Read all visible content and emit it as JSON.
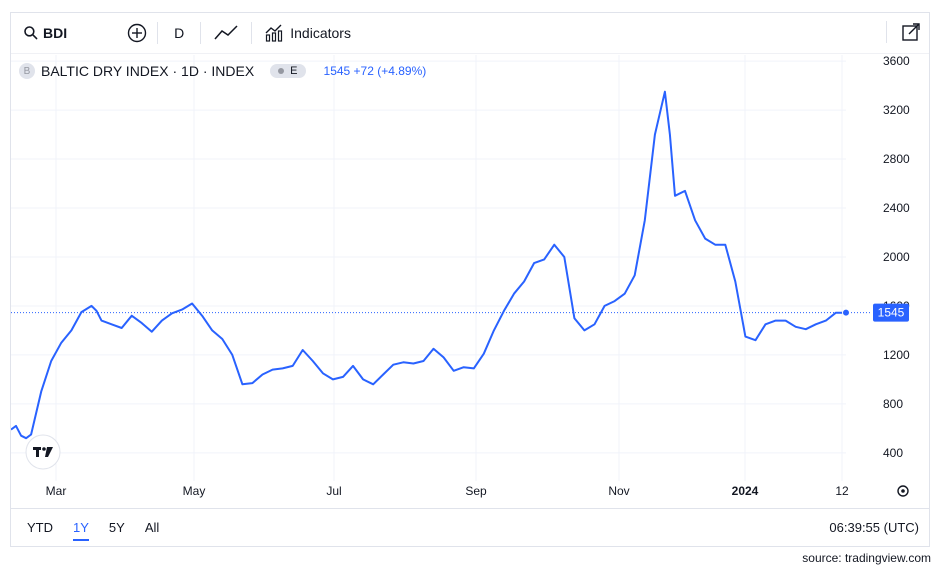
{
  "toolbar": {
    "symbol": "BDI",
    "interval": "D",
    "indicators_label": "Indicators"
  },
  "legend": {
    "title": "BALTIC DRY INDEX · 1D · INDEX",
    "badge": "E",
    "last_value": "1545 +72 (+4.89%)"
  },
  "bottom_bar": {
    "ranges": [
      "YTD",
      "1Y",
      "5Y",
      "All"
    ],
    "active_range": "1Y",
    "clock": "06:39:55 (UTC)"
  },
  "source": "source: tradingview.com",
  "colors": {
    "line": "#2962ff",
    "price_label_bg": "#2962ff",
    "grid": "#f0f3fa"
  },
  "chart_data": {
    "type": "line",
    "title": "BALTIC DRY INDEX · 1D · INDEX",
    "x_tick_labels": [
      "Mar",
      "May",
      "Jul",
      "Sep",
      "Nov",
      "2024",
      "12"
    ],
    "y_tick_labels": [
      "400",
      "800",
      "1200",
      "1600",
      "2000",
      "2400",
      "2800",
      "3200",
      "3600"
    ],
    "ylim": [
      170,
      3650
    ],
    "last_price": 1545,
    "last_price_label": "1545",
    "grid": true,
    "series": [
      {
        "x": [
          0,
          5,
          10,
          15,
          20,
          30,
          40,
          50,
          60,
          70,
          80,
          85,
          90,
          100,
          110,
          120,
          130,
          140,
          150,
          160,
          170,
          180,
          190,
          200,
          210,
          220,
          230,
          240,
          250,
          260,
          270,
          280,
          290,
          300,
          310,
          320,
          330,
          340,
          350,
          360,
          370,
          380,
          390,
          400,
          410,
          420,
          430,
          440,
          450,
          460,
          470,
          480,
          490,
          500,
          510,
          520,
          530,
          540,
          550,
          560,
          570,
          580,
          590,
          600,
          610,
          620,
          630,
          640,
          650,
          655,
          660,
          670,
          680,
          690,
          700,
          710,
          720,
          730,
          740,
          750,
          760,
          770,
          780,
          790,
          800,
          810,
          820,
          830
        ],
        "y": [
          590,
          620,
          540,
          520,
          550,
          900,
          1150,
          1300,
          1400,
          1550,
          1600,
          1560,
          1480,
          1450,
          1420,
          1520,
          1460,
          1390,
          1480,
          1540,
          1570,
          1620,
          1520,
          1400,
          1330,
          1200,
          960,
          970,
          1040,
          1080,
          1090,
          1110,
          1240,
          1150,
          1050,
          1000,
          1020,
          1110,
          1000,
          960,
          1040,
          1120,
          1140,
          1130,
          1150,
          1250,
          1180,
          1070,
          1100,
          1090,
          1210,
          1400,
          1560,
          1700,
          1800,
          1950,
          1980,
          2100,
          2000,
          1500,
          1400,
          1450,
          1600,
          1640,
          1700,
          1850,
          2300,
          3000,
          3350,
          3000,
          2500,
          2540,
          2300,
          2150,
          2100,
          2100,
          1800,
          1350,
          1320,
          1450,
          1480,
          1480,
          1430,
          1410,
          1450,
          1480,
          1545,
          1545
        ]
      }
    ]
  }
}
